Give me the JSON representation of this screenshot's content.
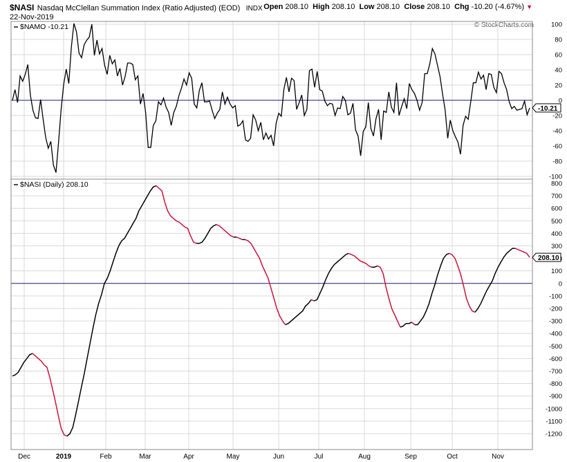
{
  "header": {
    "symbol": "$NASI",
    "name": "Nasdaq McClellan Summation Index (Ratio Adjusted) (EOD)",
    "exchange": "INDX",
    "date": "22-Nov-2019",
    "open_label": "Open",
    "open": "208.10",
    "high_label": "High",
    "high": "208.10",
    "low_label": "Low",
    "low": "208.10",
    "close_label": "Close",
    "close": "208.10",
    "chg_label": "Chg",
    "chg": "-10.20 (-4.67%)",
    "credit": "© StockCharts.com"
  },
  "colors": {
    "up": "#000000",
    "down": "#c8143c",
    "zero_line": "#1a1a6e",
    "grid": "#d9d9d9"
  },
  "chart_data": [
    {
      "type": "line",
      "title": "$NAMO -10.21",
      "series": [
        {
          "name": "$NAMO",
          "values": [
            0,
            14,
            -3,
            32,
            25,
            34,
            47,
            7,
            -13,
            -23,
            -24,
            1,
            -25,
            -49,
            -63,
            -54,
            -85,
            -95,
            -55,
            -12,
            21,
            41,
            22,
            70,
            101,
            90,
            62,
            56,
            73,
            79,
            83,
            100,
            59,
            79,
            61,
            68,
            46,
            34,
            59,
            48,
            53,
            32,
            42,
            20,
            31,
            49,
            49,
            47,
            27,
            32,
            -5,
            9,
            -16,
            -62,
            -62,
            -33,
            -27,
            -2,
            -6,
            3,
            -9,
            -16,
            -33,
            -16,
            -8,
            6,
            16,
            28,
            20,
            36,
            29,
            -5,
            -10,
            13,
            23,
            -2,
            -2,
            -1,
            -13,
            -24,
            -17,
            -12,
            11,
            -5,
            4,
            -5,
            -10,
            -7,
            -34,
            -32,
            -27,
            -52,
            -54,
            -50,
            -19,
            -26,
            -40,
            -29,
            -52,
            -43,
            -51,
            -46,
            -60,
            -30,
            -17,
            -21,
            14,
            30,
            11,
            29,
            26,
            -12,
            -3,
            7,
            -20,
            -12,
            39,
            41,
            17,
            38,
            14,
            12,
            -1,
            -7,
            -4,
            -5,
            -20,
            -10,
            -11,
            5,
            0,
            -19,
            -17,
            -4,
            -39,
            -47,
            -73,
            -41,
            -35,
            -3,
            -37,
            -47,
            -24,
            -12,
            -52,
            -14,
            -16,
            11,
            -9,
            -16,
            23,
            -20,
            -8,
            2,
            -11,
            22,
            14,
            9,
            0,
            -13,
            -3,
            35,
            35,
            48,
            68,
            61,
            46,
            31,
            8,
            -13,
            -50,
            -26,
            -40,
            -48,
            -55,
            -71,
            -33,
            -21,
            -25,
            -2,
            23,
            23,
            37,
            28,
            33,
            14,
            35,
            34,
            17,
            10,
            38,
            35,
            23,
            14,
            -2,
            -11,
            -8,
            -13,
            -12,
            -11,
            -1,
            -19,
            -10
          ]
        }
      ],
      "ylim": [
        -100,
        100
      ],
      "yticks": [
        100,
        80,
        60,
        40,
        20,
        0,
        -20,
        -40,
        -60,
        -80,
        -100
      ],
      "last_value_label": "-10.21"
    },
    {
      "type": "line",
      "title": "$NASI (Daily) 208.10",
      "series": [
        {
          "name": "$NASI",
          "values": [
            -740,
            -730,
            -710,
            -670,
            -630,
            -600,
            -570,
            -560,
            -580,
            -600,
            -620,
            -650,
            -670,
            -750,
            -850,
            -950,
            -1060,
            -1160,
            -1210,
            -1220,
            -1200,
            -1150,
            -1050,
            -940,
            -830,
            -720,
            -600,
            -480,
            -360,
            -250,
            -160,
            -90,
            0,
            40,
            100,
            170,
            240,
            300,
            340,
            360,
            400,
            440,
            480,
            520,
            580,
            620,
            660,
            700,
            740,
            770,
            780,
            760,
            740,
            650,
            580,
            540,
            520,
            500,
            490,
            470,
            450,
            440,
            380,
            330,
            320,
            320,
            330,
            360,
            400,
            440,
            460,
            470,
            460,
            440,
            420,
            400,
            380,
            370,
            370,
            360,
            350,
            350,
            340,
            320,
            280,
            240,
            200,
            140,
            90,
            40,
            -40,
            -120,
            -200,
            -260,
            -300,
            -330,
            -320,
            -300,
            -280,
            -260,
            -240,
            -220,
            -180,
            -160,
            -130,
            -140,
            -130,
            -80,
            -30,
            30,
            80,
            120,
            150,
            170,
            190,
            210,
            230,
            240,
            230,
            220,
            200,
            180,
            170,
            160,
            140,
            130,
            130,
            140,
            130,
            80,
            -30,
            -120,
            -200,
            -250,
            -300,
            -350,
            -340,
            -320,
            -320,
            -310,
            -330,
            -330,
            -300,
            -270,
            -220,
            -160,
            -80,
            -10,
            70,
            140,
            200,
            230,
            240,
            230,
            200,
            140,
            70,
            -20,
            -120,
            -180,
            -220,
            -230,
            -200,
            -160,
            -110,
            -60,
            -20,
            20,
            80,
            130,
            170,
            210,
            240,
            260,
            280,
            280,
            270,
            260,
            250,
            240,
            208
          ]
        }
      ],
      "ylim": [
        -1250,
        800
      ],
      "yticks": [
        800,
        700,
        600,
        500,
        400,
        300,
        200,
        100,
        0,
        -100,
        -200,
        -300,
        -400,
        -500,
        -600,
        -700,
        -800,
        -900,
        -1000,
        -1100,
        -1200
      ],
      "last_value_label": "208.10"
    }
  ],
  "x_axis": {
    "labels": [
      "Dec",
      "2019",
      "Feb",
      "Mar",
      "Apr",
      "May",
      "Jun",
      "Jul",
      "Aug",
      "Sep",
      "Oct",
      "Nov"
    ]
  }
}
